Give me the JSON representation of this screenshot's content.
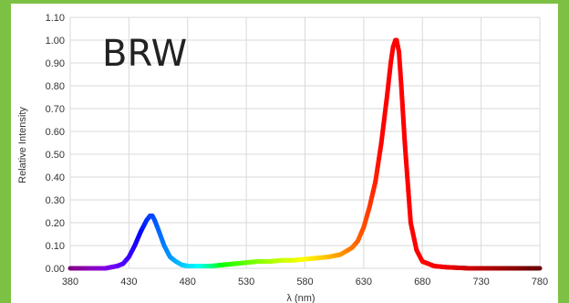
{
  "chart_data": {
    "type": "line",
    "annotation": "BRW",
    "xlabel": "λ (nm)",
    "ylabel": "Relative Intensity",
    "xlim": [
      380,
      780
    ],
    "ylim": [
      0,
      1.1
    ],
    "x_ticks": [
      380,
      430,
      480,
      530,
      580,
      630,
      680,
      730,
      780
    ],
    "y_ticks": [
      "0.00",
      "0.10",
      "0.20",
      "0.30",
      "0.40",
      "0.50",
      "0.60",
      "0.70",
      "0.80",
      "0.90",
      "1.00",
      "1.10"
    ],
    "grid": true,
    "series": [
      {
        "color_mode": "wavelength-spectrum",
        "x": [
          380,
          390,
          400,
          410,
          420,
          425,
          430,
          435,
          440,
          445,
          448,
          450,
          452,
          455,
          460,
          465,
          470,
          475,
          480,
          490,
          500,
          510,
          520,
          530,
          540,
          550,
          560,
          570,
          580,
          590,
          600,
          610,
          620,
          625,
          630,
          635,
          640,
          645,
          650,
          653,
          655,
          657,
          658,
          660,
          662,
          665,
          670,
          675,
          680,
          690,
          700,
          720,
          740,
          760,
          780
        ],
        "y": [
          0.0,
          0.0,
          0.0,
          0.0,
          0.01,
          0.02,
          0.05,
          0.1,
          0.16,
          0.21,
          0.23,
          0.23,
          0.21,
          0.17,
          0.1,
          0.05,
          0.03,
          0.015,
          0.01,
          0.01,
          0.01,
          0.015,
          0.02,
          0.025,
          0.03,
          0.03,
          0.035,
          0.035,
          0.04,
          0.045,
          0.05,
          0.06,
          0.09,
          0.12,
          0.18,
          0.27,
          0.38,
          0.55,
          0.76,
          0.9,
          0.97,
          1.0,
          1.0,
          0.95,
          0.8,
          0.55,
          0.2,
          0.08,
          0.03,
          0.01,
          0.005,
          0.0,
          0.0,
          0.0,
          0.0
        ]
      }
    ]
  },
  "frame_color": "#7dc144"
}
